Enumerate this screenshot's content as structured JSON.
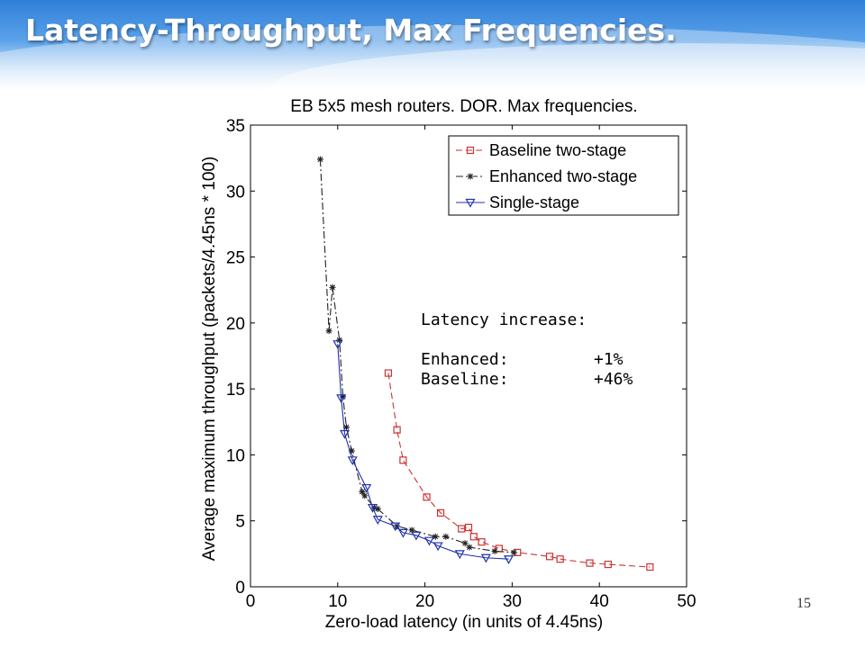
{
  "slide": {
    "title": "Latency-Throughput, Max Frequencies.",
    "page_number": "15"
  },
  "annotation": {
    "heading": "Latency increase:",
    "rows": [
      {
        "label": "Enhanced:",
        "value": "+1%"
      },
      {
        "label": "Baseline:",
        "value": "+46%"
      }
    ]
  },
  "chart_data": {
    "type": "line",
    "title": "EB 5x5 mesh routers. DOR. Max frequencies.",
    "xlabel": "Zero-load latency (in units of 4.45ns)",
    "ylabel": "Average maximum throughput (packets/4.45ns * 100)",
    "xlim": [
      0,
      50
    ],
    "ylim": [
      0,
      35
    ],
    "xticks": [
      0,
      10,
      20,
      30,
      40,
      50
    ],
    "yticks": [
      0,
      5,
      10,
      15,
      20,
      25,
      30,
      35
    ],
    "grid": false,
    "legend_position": "top-right",
    "series": [
      {
        "name": "Baseline two-stage",
        "color": "#cc3333",
        "line_style": "dashed",
        "marker": "square",
        "x": [
          15.8,
          16.8,
          17.5,
          20.2,
          21.8,
          24.2,
          25.0,
          25.6,
          26.5,
          28.5,
          30.6,
          34.3,
          35.5,
          38.9,
          41.0,
          45.8
        ],
        "y": [
          16.2,
          11.9,
          9.6,
          6.8,
          5.6,
          4.4,
          4.5,
          3.8,
          3.4,
          2.9,
          2.6,
          2.3,
          2.1,
          1.8,
          1.7,
          1.5
        ]
      },
      {
        "name": "Enhanced two-stage",
        "color": "#222222",
        "line_style": "dashdot",
        "marker": "star",
        "x": [
          8.0,
          9.0,
          9.4,
          10.2,
          10.6,
          11.0,
          11.6,
          12.8,
          13.1,
          14.2,
          14.6,
          16.8,
          18.5,
          21.2,
          22.4,
          24.6,
          25.1,
          28.0,
          30.2
        ],
        "y": [
          32.4,
          19.4,
          22.7,
          18.7,
          14.4,
          12.1,
          10.3,
          7.2,
          6.9,
          6.0,
          5.9,
          4.6,
          4.3,
          3.8,
          3.8,
          3.3,
          3.0,
          2.7,
          2.6
        ]
      },
      {
        "name": "Single-stage",
        "color": "#2233aa",
        "line_style": "solid",
        "marker": "triangle-down",
        "x": [
          10.0,
          10.4,
          10.8,
          11.7,
          13.3,
          14.0,
          14.6,
          16.6,
          17.5,
          19.0,
          20.5,
          21.5,
          24.0,
          27.0,
          29.6
        ],
        "y": [
          18.4,
          14.3,
          11.6,
          9.6,
          7.5,
          6.0,
          5.1,
          4.6,
          4.1,
          3.9,
          3.5,
          3.1,
          2.5,
          2.2,
          2.1
        ]
      }
    ]
  }
}
